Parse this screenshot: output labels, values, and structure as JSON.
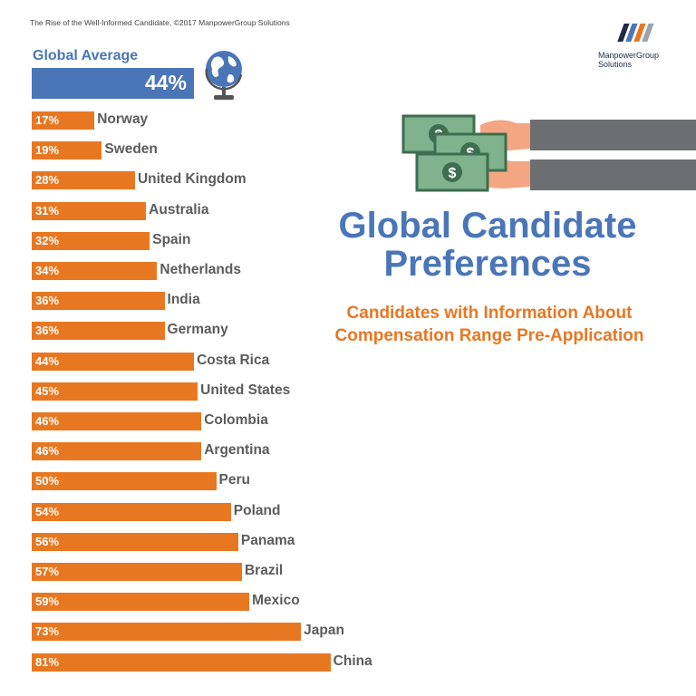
{
  "header": {
    "credit": "The Rise of the Well-Informed Candidate, ©2017 ManpowerGroup Solutions",
    "logo_line1": "ManpowerGroup",
    "logo_line2": "Solutions"
  },
  "global_average": {
    "label": "Global Average",
    "value_label": "44%",
    "value": 44
  },
  "title": {
    "line1": "Global Candidate",
    "line2": "Preferences"
  },
  "subtitle": {
    "line1": "Candidates with Information About",
    "line2": "Compensation Range Pre-Application"
  },
  "colors": {
    "bar": "#e87722",
    "accent": "#4a76b8",
    "label": "#5c5c5c"
  },
  "chart_data": {
    "type": "bar",
    "orientation": "horizontal",
    "unit": "%",
    "categories": [
      "Norway",
      "Sweden",
      "United Kingdom",
      "Australia",
      "Spain",
      "Netherlands",
      "India",
      "Germany",
      "Costa Rica",
      "United States",
      "Colombia",
      "Argentina",
      "Peru",
      "Poland",
      "Panama",
      "Brazil",
      "Mexico",
      "Japan",
      "China"
    ],
    "values": [
      17,
      19,
      28,
      31,
      32,
      34,
      36,
      36,
      44,
      45,
      46,
      46,
      50,
      54,
      56,
      57,
      59,
      73,
      81
    ],
    "value_labels": [
      "17%",
      "19%",
      "28%",
      "31%",
      "32%",
      "34%",
      "36%",
      "36%",
      "44%",
      "45%",
      "46%",
      "46%",
      "50%",
      "54%",
      "56%",
      "57%",
      "59%",
      "73%",
      "81%"
    ],
    "xlim": [
      0,
      100
    ],
    "grid": false,
    "legend": "none"
  },
  "icons": {
    "globe": "globe-icon",
    "money": "money-hand-icon",
    "logo": "manpower-logo-icon"
  }
}
